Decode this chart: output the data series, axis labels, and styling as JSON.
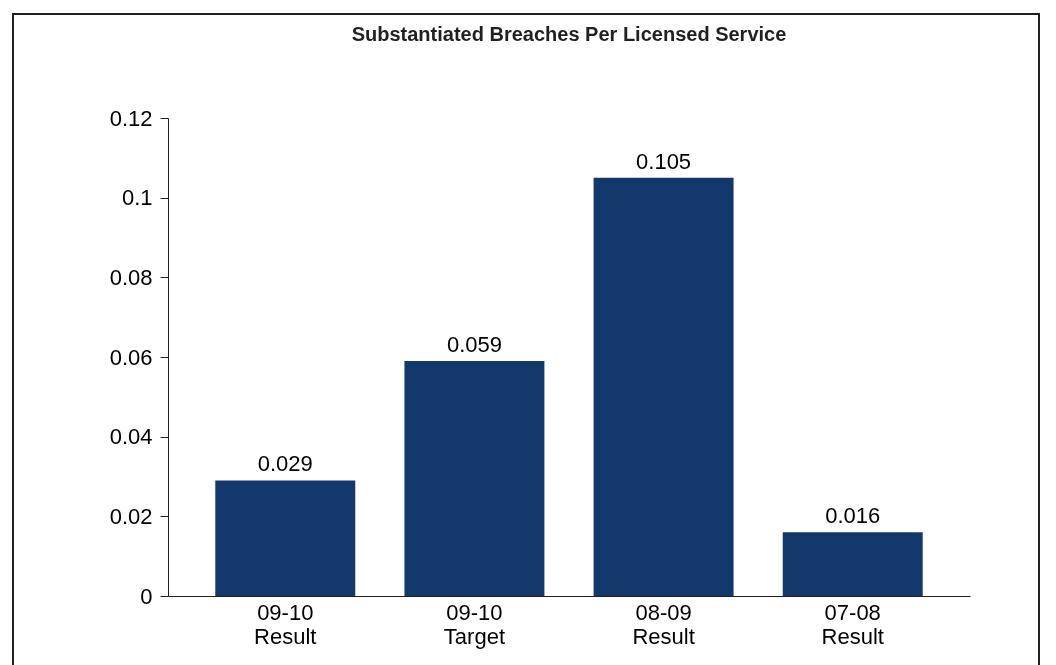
{
  "chart_data": {
    "type": "bar",
    "title": "Substantiated Breaches Per Licensed Service",
    "categories": [
      "09-10\nResult",
      "09-10\nTarget",
      "08-09\nResult",
      "07-08\nResult"
    ],
    "values": [
      0.029,
      0.059,
      0.105,
      0.016
    ],
    "color": "#13386b",
    "ylim": [
      0,
      0.12
    ],
    "yticks": [
      0,
      0.02,
      0.04,
      0.06,
      0.08,
      0.1,
      0.12
    ],
    "data_labels": true
  }
}
